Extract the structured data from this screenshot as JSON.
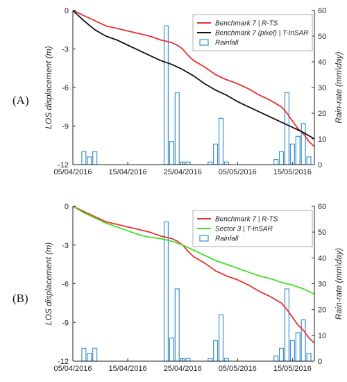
{
  "figure": {
    "panels": [
      {
        "label": "(A)",
        "label_letter": "A",
        "y_left_label": "LOS displacement (m)",
        "y_right_label": "Rain-rate (mm\\day)",
        "y_left_ticks": [
          "0",
          "-3",
          "-6",
          "-9",
          "-12"
        ],
        "y_right_ticks": [
          "60",
          "50",
          "40",
          "30",
          "20",
          "10",
          "0"
        ],
        "x_ticks": [
          "05/04/2016",
          "15/04/2016",
          "25/04/2016",
          "05/05/2016",
          "15/05/2016"
        ],
        "legend": [
          {
            "label": "Benchmark 7 | R-TS",
            "kind": "line",
            "color": "#e8312f"
          },
          {
            "label": "Benchmark 7 (pixel) | T-InSAR",
            "kind": "line",
            "color": "#111111"
          },
          {
            "label": "Rainfall",
            "kind": "bar",
            "color": "#3b8fd1"
          }
        ]
      },
      {
        "label": "(B)",
        "label_letter": "B",
        "y_left_label": "LOS displacement (m)",
        "y_right_label": "Rain-rate (mm\\day)",
        "y_left_ticks": [
          "0",
          "-3",
          "-6",
          "-9",
          "-12"
        ],
        "y_right_ticks": [
          "60",
          "50",
          "40",
          "30",
          "20",
          "10",
          "0"
        ],
        "x_ticks": [
          "05/04/2016",
          "15/04/2016",
          "25/04/2016",
          "05/05/2016",
          "15/05/2016"
        ],
        "legend": [
          {
            "label": "Benchmark 7 | R-TS",
            "kind": "line",
            "color": "#e8312f"
          },
          {
            "label": "Sector 3 | T-InSAR",
            "kind": "line",
            "color": "#44dd22"
          },
          {
            "label": "Rainfall",
            "kind": "bar",
            "color": "#3b8fd1"
          }
        ]
      }
    ]
  },
  "chart_data": [
    {
      "type": "line",
      "panel": "A",
      "xlabel": "",
      "ylabel": "LOS displacement (m)",
      "y2label": "Rain-rate (mm\\day)",
      "x_range": [
        "2016-04-05",
        "2016-05-19"
      ],
      "ylim": [
        -12,
        0
      ],
      "y2lim": [
        0,
        60
      ],
      "legend_position": "top-right",
      "grid": false,
      "series": [
        {
          "name": "Benchmark 7 | R-TS",
          "color": "#e8312f",
          "axis": "left",
          "points": [
            [
              "2016-04-05",
              0.0
            ],
            [
              "2016-04-07",
              -0.4
            ],
            [
              "2016-04-09",
              -0.8
            ],
            [
              "2016-04-11",
              -1.2
            ],
            [
              "2016-04-13",
              -1.4
            ],
            [
              "2016-04-15",
              -1.6
            ],
            [
              "2016-04-17",
              -1.8
            ],
            [
              "2016-04-19",
              -2.0
            ],
            [
              "2016-04-21",
              -2.3
            ],
            [
              "2016-04-23",
              -2.5
            ],
            [
              "2016-04-24",
              -2.7
            ],
            [
              "2016-04-25",
              -3.0
            ],
            [
              "2016-04-26",
              -3.5
            ],
            [
              "2016-04-27",
              -3.9
            ],
            [
              "2016-04-29",
              -4.4
            ],
            [
              "2016-05-01",
              -5.0
            ],
            [
              "2016-05-03",
              -5.4
            ],
            [
              "2016-05-05",
              -5.7
            ],
            [
              "2016-05-07",
              -6.1
            ],
            [
              "2016-05-09",
              -6.6
            ],
            [
              "2016-05-11",
              -7.0
            ],
            [
              "2016-05-13",
              -7.5
            ],
            [
              "2016-05-14",
              -8.0
            ],
            [
              "2016-05-15",
              -8.6
            ],
            [
              "2016-05-16",
              -9.2
            ],
            [
              "2016-05-17",
              -9.6
            ],
            [
              "2016-05-18",
              -10.2
            ],
            [
              "2016-05-19",
              -10.6
            ]
          ]
        },
        {
          "name": "Benchmark 7 (pixel) | T-InSAR",
          "color": "#111111",
          "axis": "left",
          "points": [
            [
              "2016-04-05",
              0.0
            ],
            [
              "2016-04-07",
              -0.8
            ],
            [
              "2016-04-09",
              -1.5
            ],
            [
              "2016-04-11",
              -2.0
            ],
            [
              "2016-04-13",
              -2.3
            ],
            [
              "2016-04-15",
              -2.7
            ],
            [
              "2016-04-17",
              -3.1
            ],
            [
              "2016-04-19",
              -3.5
            ],
            [
              "2016-04-21",
              -3.9
            ],
            [
              "2016-04-23",
              -4.2
            ],
            [
              "2016-04-25",
              -4.6
            ],
            [
              "2016-04-27",
              -5.1
            ],
            [
              "2016-04-29",
              -5.7
            ],
            [
              "2016-05-01",
              -6.2
            ],
            [
              "2016-05-03",
              -6.6
            ],
            [
              "2016-05-05",
              -7.1
            ],
            [
              "2016-05-07",
              -7.5
            ],
            [
              "2016-05-09",
              -7.9
            ],
            [
              "2016-05-11",
              -8.3
            ],
            [
              "2016-05-13",
              -8.7
            ],
            [
              "2016-05-15",
              -9.1
            ],
            [
              "2016-05-17",
              -9.5
            ],
            [
              "2016-05-19",
              -10.0
            ]
          ]
        }
      ],
      "rainfall": {
        "name": "Rainfall",
        "color": "#3b8fd1",
        "axis": "right",
        "points": [
          [
            "2016-04-07",
            5
          ],
          [
            "2016-04-08",
            3
          ],
          [
            "2016-04-09",
            5
          ],
          [
            "2016-04-22",
            54
          ],
          [
            "2016-04-23",
            9
          ],
          [
            "2016-04-24",
            28
          ],
          [
            "2016-04-25",
            1
          ],
          [
            "2016-04-26",
            1
          ],
          [
            "2016-04-30",
            1
          ],
          [
            "2016-05-01",
            8
          ],
          [
            "2016-05-02",
            18
          ],
          [
            "2016-05-03",
            1
          ],
          [
            "2016-05-12",
            2
          ],
          [
            "2016-05-13",
            5
          ],
          [
            "2016-05-14",
            28
          ],
          [
            "2016-05-15",
            8
          ],
          [
            "2016-05-16",
            11
          ],
          [
            "2016-05-17",
            16
          ],
          [
            "2016-05-18",
            3
          ]
        ]
      }
    },
    {
      "type": "line",
      "panel": "B",
      "xlabel": "",
      "ylabel": "LOS displacement (m)",
      "y2label": "Rain-rate (mm\\day)",
      "x_range": [
        "2016-04-05",
        "2016-05-19"
      ],
      "ylim": [
        -12,
        0
      ],
      "y2lim": [
        0,
        60
      ],
      "legend_position": "top-right",
      "grid": false,
      "series": [
        {
          "name": "Benchmark 7 | R-TS",
          "color": "#e8312f",
          "axis": "left",
          "points": [
            [
              "2016-04-05",
              0.0
            ],
            [
              "2016-04-07",
              -0.4
            ],
            [
              "2016-04-09",
              -0.8
            ],
            [
              "2016-04-11",
              -1.2
            ],
            [
              "2016-04-13",
              -1.4
            ],
            [
              "2016-04-15",
              -1.6
            ],
            [
              "2016-04-17",
              -1.8
            ],
            [
              "2016-04-19",
              -2.0
            ],
            [
              "2016-04-21",
              -2.3
            ],
            [
              "2016-04-23",
              -2.5
            ],
            [
              "2016-04-24",
              -2.7
            ],
            [
              "2016-04-25",
              -3.0
            ],
            [
              "2016-04-26",
              -3.5
            ],
            [
              "2016-04-27",
              -3.9
            ],
            [
              "2016-04-29",
              -4.4
            ],
            [
              "2016-05-01",
              -5.0
            ],
            [
              "2016-05-03",
              -5.4
            ],
            [
              "2016-05-05",
              -5.7
            ],
            [
              "2016-05-07",
              -6.1
            ],
            [
              "2016-05-09",
              -6.6
            ],
            [
              "2016-05-11",
              -7.0
            ],
            [
              "2016-05-13",
              -7.5
            ],
            [
              "2016-05-14",
              -8.0
            ],
            [
              "2016-05-15",
              -8.6
            ],
            [
              "2016-05-16",
              -9.2
            ],
            [
              "2016-05-17",
              -9.6
            ],
            [
              "2016-05-18",
              -10.2
            ],
            [
              "2016-05-19",
              -10.6
            ]
          ]
        },
        {
          "name": "Sector 3 | T-InSAR",
          "color": "#44dd22",
          "axis": "left",
          "points": [
            [
              "2016-04-05",
              0.0
            ],
            [
              "2016-04-07",
              -0.5
            ],
            [
              "2016-04-09",
              -0.9
            ],
            [
              "2016-04-11",
              -1.3
            ],
            [
              "2016-04-13",
              -1.6
            ],
            [
              "2016-04-15",
              -1.9
            ],
            [
              "2016-04-17",
              -2.2
            ],
            [
              "2016-04-19",
              -2.4
            ],
            [
              "2016-04-21",
              -2.5
            ],
            [
              "2016-04-23",
              -2.7
            ],
            [
              "2016-04-25",
              -3.0
            ],
            [
              "2016-04-27",
              -3.4
            ],
            [
              "2016-04-29",
              -3.8
            ],
            [
              "2016-05-01",
              -4.2
            ],
            [
              "2016-05-03",
              -4.5
            ],
            [
              "2016-05-05",
              -4.8
            ],
            [
              "2016-05-07",
              -5.1
            ],
            [
              "2016-05-09",
              -5.4
            ],
            [
              "2016-05-11",
              -5.6
            ],
            [
              "2016-05-13",
              -5.9
            ],
            [
              "2016-05-15",
              -6.1
            ],
            [
              "2016-05-17",
              -6.4
            ],
            [
              "2016-05-19",
              -6.8
            ]
          ]
        }
      ],
      "rainfall": {
        "name": "Rainfall",
        "color": "#3b8fd1",
        "axis": "right",
        "points": [
          [
            "2016-04-07",
            5
          ],
          [
            "2016-04-08",
            3
          ],
          [
            "2016-04-09",
            5
          ],
          [
            "2016-04-22",
            54
          ],
          [
            "2016-04-23",
            9
          ],
          [
            "2016-04-24",
            28
          ],
          [
            "2016-04-25",
            1
          ],
          [
            "2016-04-26",
            1
          ],
          [
            "2016-04-30",
            1
          ],
          [
            "2016-05-01",
            8
          ],
          [
            "2016-05-02",
            18
          ],
          [
            "2016-05-03",
            1
          ],
          [
            "2016-05-12",
            2
          ],
          [
            "2016-05-13",
            5
          ],
          [
            "2016-05-14",
            28
          ],
          [
            "2016-05-15",
            8
          ],
          [
            "2016-05-16",
            11
          ],
          [
            "2016-05-17",
            16
          ],
          [
            "2016-05-18",
            3
          ]
        ]
      }
    }
  ]
}
